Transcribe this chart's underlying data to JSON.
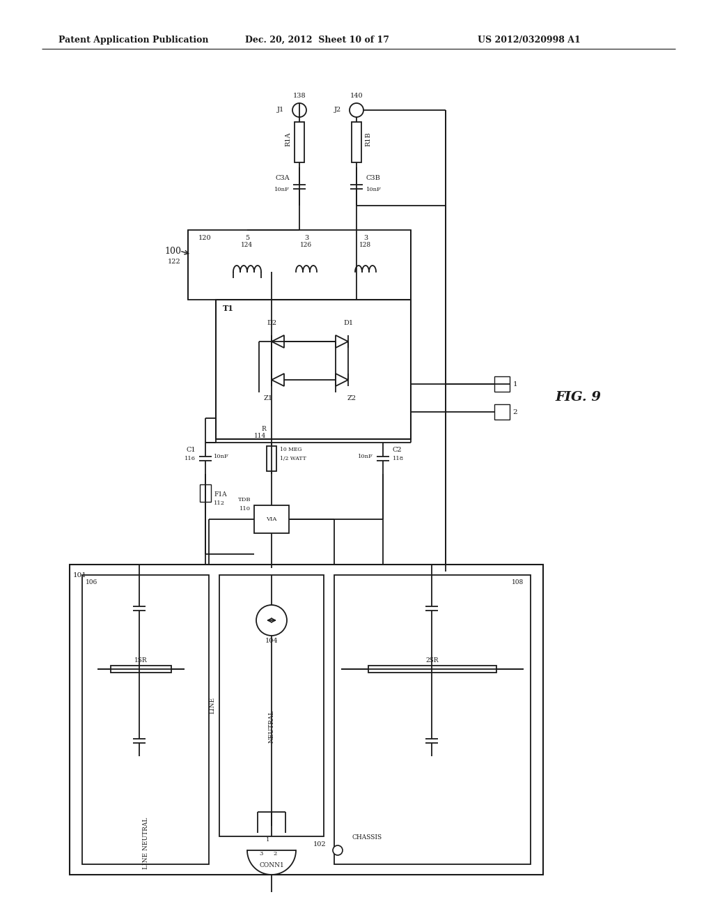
{
  "bg_color": "#ffffff",
  "line_color": "#1a1a1a",
  "header_left": "Patent Application Publication",
  "header_mid": "Dec. 20, 2012  Sheet 10 of 17",
  "header_right": "US 2012/0320998 A1",
  "fig_label": "FIG. 9"
}
